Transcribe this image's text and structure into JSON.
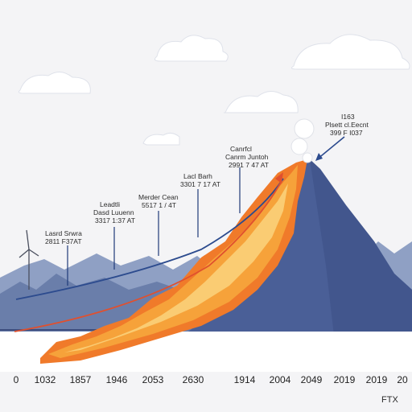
{
  "chart_data": {
    "type": "area",
    "title": "",
    "xlabel": "",
    "ylabel": "",
    "x_ticks": [
      "0",
      "1032",
      "1857",
      "1946",
      "2053",
      "2630",
      "1914",
      "2004",
      "2049",
      "2019",
      "2019",
      "20"
    ],
    "annotations": [
      {
        "line1": "Lasrd Srwra",
        "line2": "2811 F37AT"
      },
      {
        "line1": "Leadtli",
        "line2": "Dasd Luuenn",
        "line3": "3317 1:37 AT"
      },
      {
        "line1": "Merder Cean",
        "line2": "5517 1 / 4T"
      },
      {
        "line1": "Lacl Barh",
        "line2": "3301 7 17 AT"
      },
      {
        "line1": "Canrfcl",
        "line2": "Canrm Juntoh",
        "line3": "2991 7 47 AT"
      },
      {
        "line1": "I163",
        "line2": "Plsett cl.Eecnt",
        "line3": "399 F I037"
      }
    ],
    "grid": false,
    "legend": "none"
  },
  "footer": {
    "brand": "FTX"
  },
  "colors": {
    "sky": "#f4f4f6",
    "mountain": "#4a5f97",
    "far_mountain": "#6a7eaa",
    "flame_outer": "#f07a2a",
    "flame_mid": "#f6a23a",
    "flame_inner": "#fbd07a",
    "trend_red": "#e0502e",
    "trend_blue": "#2c4b8e"
  }
}
